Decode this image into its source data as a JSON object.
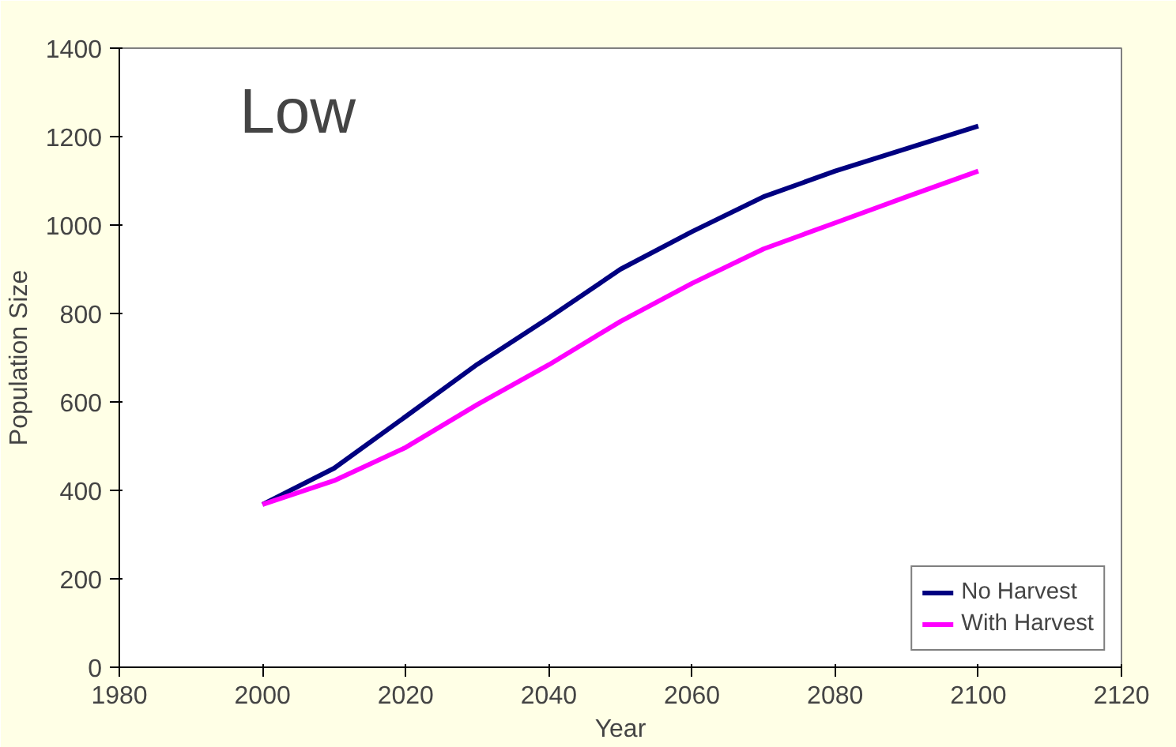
{
  "chart_data": {
    "type": "line",
    "xlabel": "Year",
    "ylabel": "Population Size",
    "annotations": [
      "Low"
    ],
    "x": [
      2000,
      2010,
      2020,
      2030,
      2040,
      2050,
      2060,
      2070,
      2080,
      2090,
      2100
    ],
    "series": [
      {
        "name": "No Harvest",
        "color": "#000080",
        "values": [
          368,
          450,
          567,
          685,
          790,
          900,
          985,
          1064,
          1122,
          1173,
          1224
        ]
      },
      {
        "name": "With Harvest",
        "color": "#ff00ff",
        "values": [
          368,
          422,
          497,
          594,
          684,
          782,
          868,
          946,
          1005,
          1064,
          1122
        ]
      }
    ],
    "xlim": [
      1980,
      2120
    ],
    "xticks": [
      1980,
      2000,
      2020,
      2040,
      2060,
      2080,
      2100,
      2120
    ],
    "ylim": [
      0,
      1400
    ],
    "yticks": [
      0,
      200,
      400,
      600,
      800,
      1000,
      1200,
      1400
    ],
    "grid": false,
    "legend": "bottom right",
    "marker": "none",
    "line_style": "solid"
  }
}
